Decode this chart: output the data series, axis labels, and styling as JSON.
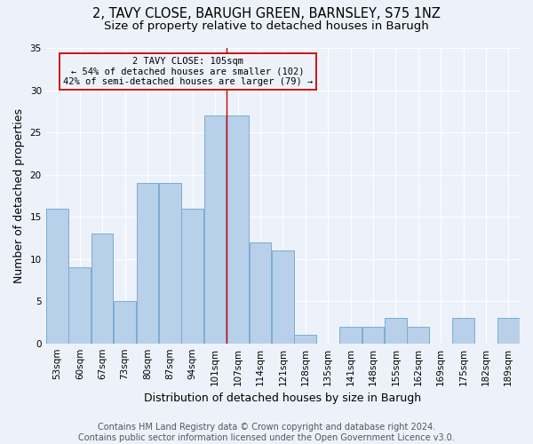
{
  "title1": "2, TAVY CLOSE, BARUGH GREEN, BARNSLEY, S75 1NZ",
  "title2": "Size of property relative to detached houses in Barugh",
  "xlabel": "Distribution of detached houses by size in Barugh",
  "ylabel": "Number of detached properties",
  "categories": [
    "53sqm",
    "60sqm",
    "67sqm",
    "73sqm",
    "80sqm",
    "87sqm",
    "94sqm",
    "101sqm",
    "107sqm",
    "114sqm",
    "121sqm",
    "128sqm",
    "135sqm",
    "141sqm",
    "148sqm",
    "155sqm",
    "162sqm",
    "169sqm",
    "175sqm",
    "182sqm",
    "189sqm"
  ],
  "values": [
    16,
    9,
    13,
    5,
    19,
    19,
    16,
    27,
    27,
    12,
    11,
    1,
    0,
    2,
    2,
    3,
    2,
    0,
    3,
    0,
    3
  ],
  "bar_color": "#b8d0ea",
  "bar_edge_color": "#7aadd4",
  "property_label": "2 TAVY CLOSE: 105sqm",
  "annotation_line1": "← 54% of detached houses are smaller (102)",
  "annotation_line2": "42% of semi-detached houses are larger (79) →",
  "vline_color": "#cc0000",
  "vline_index": 7.5,
  "annotation_box_color": "#cc0000",
  "ylim": [
    0,
    35
  ],
  "yticks": [
    0,
    5,
    10,
    15,
    20,
    25,
    30,
    35
  ],
  "footer1": "Contains HM Land Registry data © Crown copyright and database right 2024.",
  "footer2": "Contains public sector information licensed under the Open Government Licence v3.0.",
  "bg_color": "#edf2fa",
  "grid_color": "#ffffff",
  "title_fontsize": 10.5,
  "subtitle_fontsize": 9.5,
  "axis_label_fontsize": 9,
  "tick_fontsize": 7.5,
  "footer_fontsize": 7
}
